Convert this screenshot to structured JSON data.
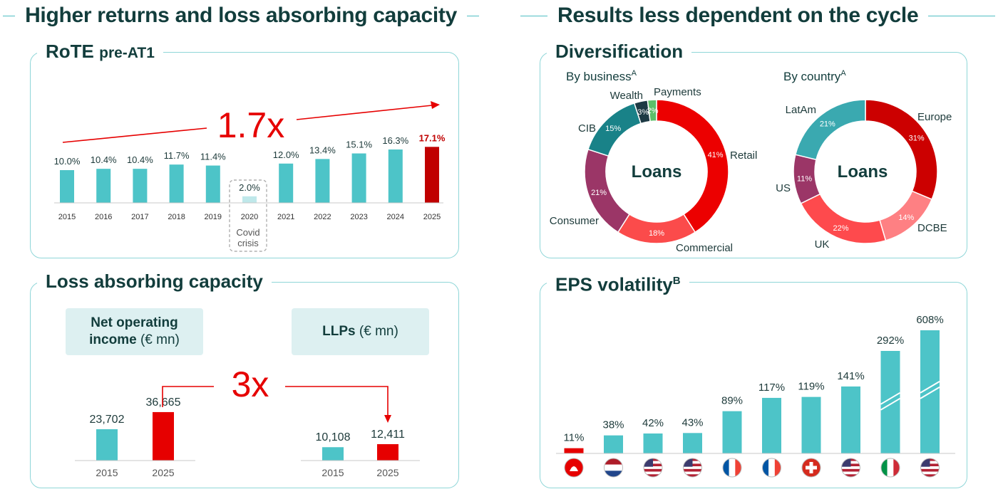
{
  "left_header": "Higher returns and loss absorbing capacity",
  "right_header": "Results less dependent on the cycle",
  "rote": {
    "title_main": "RoTE",
    "title_sub": "pre-AT1",
    "multiplier": "1.7x",
    "covid_note_line1": "Covid",
    "covid_note_line2": "crisis"
  },
  "loss": {
    "title": "Loss absorbing capacity",
    "noi_label_bold": "Net operating income",
    "noi_label_unit": "(€ mn)",
    "llp_label_bold": "LLPs",
    "llp_label_unit": "(€ mn)",
    "multiplier": "3x"
  },
  "diversification": {
    "title": "Diversification",
    "by_business_label": "By business",
    "by_country_label": "By country",
    "superscript": "A",
    "center_label": "Loans"
  },
  "eps": {
    "title": "EPS volatility",
    "superscript": "B",
    "flags": [
      "santander-logo-icon",
      "netherlands-flag-icon",
      "us-flag-icon",
      "us-flag-icon",
      "france-flag-icon",
      "france-flag-icon",
      "switzerland-flag-icon",
      "us-flag-icon",
      "italy-flag-icon",
      "us-flag-icon"
    ]
  },
  "colors": {
    "teal": "#4dc4c8",
    "red": "#e60000",
    "dark_red": "#c00000",
    "text_dark": "#123d3c"
  },
  "chart_data": [
    {
      "type": "bar",
      "title": "RoTE pre-AT1",
      "categories": [
        "2015",
        "2016",
        "2017",
        "2018",
        "2019",
        "2020",
        "2021",
        "2022",
        "2023",
        "2024",
        "2025"
      ],
      "values": [
        10.0,
        10.4,
        10.4,
        11.7,
        11.4,
        2.0,
        12.0,
        13.4,
        15.1,
        16.3,
        17.1
      ],
      "labels": [
        "10.0%",
        "10.4%",
        "10.4%",
        "11.7%",
        "11.4%",
        "2.0%",
        "12.0%",
        "13.4%",
        "15.1%",
        "16.3%",
        "17.1%"
      ],
      "ylim": [
        0,
        20
      ]
    },
    {
      "type": "bar",
      "title": "Net operating income (€ mn)",
      "categories": [
        "2015",
        "2025"
      ],
      "values": [
        23702,
        36665
      ],
      "labels": [
        "23,702",
        "36,665"
      ]
    },
    {
      "type": "bar",
      "title": "LLPs (€ mn)",
      "categories": [
        "2015",
        "2025"
      ],
      "values": [
        10108,
        12411
      ],
      "labels": [
        "10,108",
        "12,411"
      ]
    },
    {
      "type": "pie",
      "title": "Loans by business",
      "categories": [
        "Retail",
        "Commercial",
        "Consumer",
        "CIB",
        "Wealth",
        "Payments"
      ],
      "values": [
        41,
        18,
        21,
        15,
        3,
        2
      ],
      "labels": [
        "41%",
        "18%",
        "21%",
        "15%",
        "3%",
        "2%"
      ],
      "colors": [
        "#ec0000",
        "#fb4b4b",
        "#9b3667",
        "#198288",
        "#1d3a44",
        "#5cbf6a"
      ]
    },
    {
      "type": "pie",
      "title": "Loans by country",
      "categories": [
        "Europe",
        "DCBE",
        "UK",
        "US",
        "LatAm"
      ],
      "values": [
        31,
        14,
        22,
        11,
        21
      ],
      "labels": [
        "31%",
        "14%",
        "22%",
        "11%",
        "21%"
      ],
      "colors": [
        "#cc0000",
        "#fe8083",
        "#fe4a4d",
        "#9b3667",
        "#3aa9b0"
      ]
    },
    {
      "type": "bar",
      "title": "EPS volatility",
      "categories": [
        "Santander",
        "NL bank",
        "US bank 1",
        "US bank 2",
        "FR bank 1",
        "FR bank 2",
        "CH bank",
        "US bank 3",
        "IT bank",
        "US bank 4"
      ],
      "values": [
        11,
        38,
        42,
        43,
        89,
        117,
        119,
        141,
        292,
        608
      ],
      "labels": [
        "11%",
        "38%",
        "42%",
        "43%",
        "89%",
        "117%",
        "119%",
        "141%",
        "292%",
        "608%"
      ]
    }
  ]
}
